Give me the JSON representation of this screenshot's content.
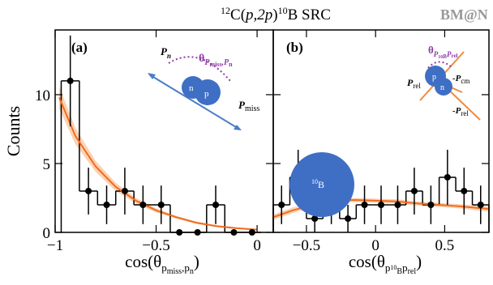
{
  "title": [
    "12",
    "C(",
    "p,2p",
    ")",
    "10",
    "B SRC"
  ],
  "watermark": "BM@N",
  "ylabel": "Counts",
  "chart_data": [
    {
      "type": "histogram",
      "panel_label": "(a)",
      "color": "#000000",
      "bins": [
        -0.97,
        -0.88,
        -0.79,
        -0.7,
        -0.61,
        -0.52,
        -0.43,
        -0.34,
        -0.25,
        -0.16,
        -0.07,
        0.02
      ],
      "values": [
        11,
        3,
        2,
        3,
        2,
        2,
        0,
        0,
        2,
        0,
        0
      ],
      "errors": [
        3.3,
        1.7,
        1.4,
        1.7,
        1.4,
        1.4,
        0,
        0,
        1.4,
        0,
        0
      ],
      "fit": {
        "color": "#f26b1d",
        "band_color": "#f9c39a",
        "x": [
          -0.98,
          -0.9,
          -0.8,
          -0.7,
          -0.6,
          -0.5,
          -0.4,
          -0.3,
          -0.2,
          -0.1,
          0
        ],
        "y": [
          9.8,
          7.0,
          4.8,
          3.3,
          2.3,
          1.6,
          1.1,
          0.7,
          0.45,
          0.3,
          0.2
        ],
        "lower": [
          9.0,
          6.4,
          4.4,
          3.0,
          2.1,
          1.45,
          1.0,
          0.62,
          0.38,
          0.24,
          0.15
        ],
        "upper": [
          10.6,
          7.6,
          5.2,
          3.6,
          2.5,
          1.75,
          1.2,
          0.78,
          0.52,
          0.36,
          0.25
        ]
      },
      "xlim": [
        -1,
        0.08
      ],
      "ylim": [
        0,
        14.7
      ],
      "xticks": [
        {
          "value": -1,
          "label": "−1"
        },
        {
          "value": -0.5,
          "label": "−0.5"
        },
        0
      ],
      "yticks": [
        0,
        5,
        10
      ],
      "xlabel": [
        "cos(θ",
        "p",
        "miss",
        ",p",
        "n",
        ")"
      ],
      "inset": [
        "P",
        "n",
        "θ",
        "P",
        "miss",
        ",P",
        "n",
        "n",
        "p",
        "P",
        "miss"
      ]
    },
    {
      "type": "histogram",
      "panel_label": "(b)",
      "color": "#000000",
      "bins": [
        -0.74,
        -0.62,
        -0.5,
        -0.38,
        -0.26,
        -0.14,
        -0.02,
        0.1,
        0.22,
        0.34,
        0.46,
        0.58,
        0.7,
        0.82
      ],
      "values": [
        2,
        4,
        1,
        2,
        1,
        2,
        2,
        2,
        3,
        2,
        4,
        3,
        2
      ],
      "errors": [
        1.4,
        2.0,
        1.0,
        1.4,
        1.0,
        1.4,
        1.4,
        1.4,
        1.7,
        1.4,
        2.0,
        1.7,
        1.4
      ],
      "fit": {
        "color": "#f26b1d",
        "band_color": "#f9c39a",
        "x": [
          -0.74,
          -0.6,
          -0.45,
          -0.3,
          -0.15,
          0,
          0.15,
          0.3,
          0.45,
          0.6,
          0.82
        ],
        "y": [
          1.1,
          1.6,
          2.0,
          2.3,
          2.35,
          2.3,
          2.25,
          2.1,
          2.0,
          1.9,
          1.7
        ],
        "lower": [
          0.9,
          1.4,
          1.85,
          2.15,
          2.2,
          2.15,
          2.1,
          1.95,
          1.85,
          1.75,
          1.5
        ],
        "upper": [
          1.3,
          1.8,
          2.15,
          2.45,
          2.5,
          2.45,
          2.4,
          2.25,
          2.15,
          2.05,
          1.9
        ]
      },
      "xlim": [
        -0.74,
        0.82
      ],
      "ylim": [
        0,
        14.7
      ],
      "xticks": [
        {
          "value": -0.5,
          "label": "−0.5"
        },
        0,
        0.5
      ],
      "yticks": [
        0,
        5,
        10
      ],
      "xlabel": [
        "cos(θ",
        "p",
        "10",
        "B",
        "p",
        "rel",
        ")"
      ],
      "inset": [
        "P",
        "rel",
        "θ",
        "P",
        "10",
        "B",
        "P",
        "rel",
        "p",
        "n",
        "-P",
        "cm",
        "10",
        "B",
        "-P",
        "rel"
      ]
    }
  ]
}
